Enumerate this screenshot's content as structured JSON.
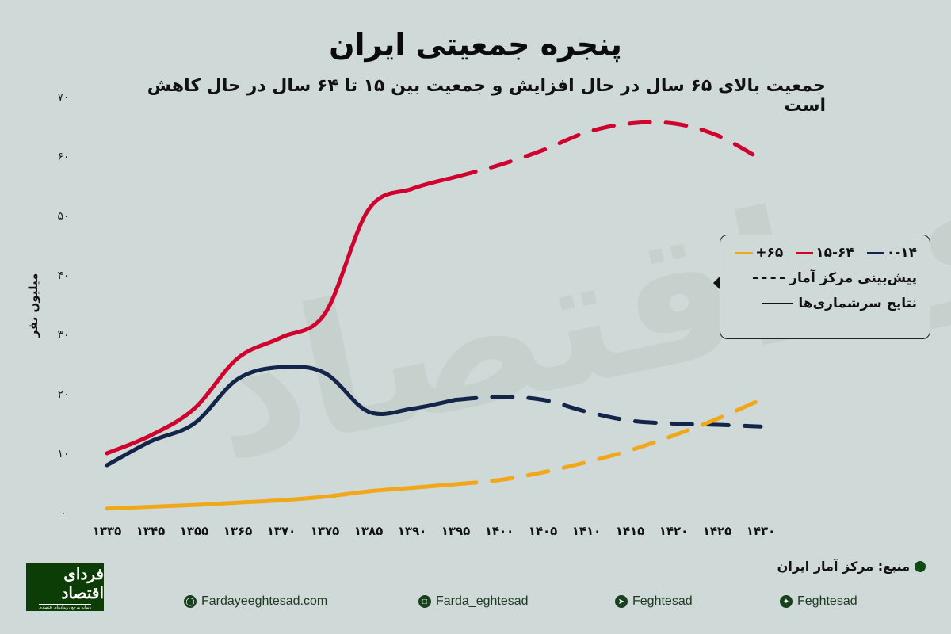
{
  "header": {
    "title": "پنجره جمعیتی ایران",
    "subtitle": "جمعیت بالای ۶۵ سال در حال افزایش و جمعیت بین ۱۵ تا ۶۴ سال در حال کاهش است"
  },
  "watermark": "فردای اقتصاد",
  "legend": {
    "series": [
      {
        "label": "۰-۱۴",
        "color": "#13264A"
      },
      {
        "label": "۱۵-۶۴",
        "color": "#D0022E"
      },
      {
        "label": "۶۵+",
        "color": "#F0A81A"
      }
    ],
    "dashed_label": "پیش‌بینی مرکز آمار",
    "solid_label": "نتایج سرشماری‌ها"
  },
  "source": "منبع: مرکز آمار ایران",
  "logo": {
    "main": "فردای اقتصاد",
    "sub": "رسانه مرجع رویدادهای اقتصادی"
  },
  "footer": {
    "website": "Fardayeeghtesad.com",
    "instagram": "Farda_eghtesad",
    "telegram": "Feghtesad",
    "twitter": "Feghtesad"
  },
  "colors": {
    "background": "#CFD9D8",
    "age_0_14": "#13264A",
    "age_15_64": "#D0022E",
    "age_65_plus": "#F0A81A",
    "brand_green": "#0D3D06"
  },
  "chart_data": {
    "type": "line",
    "title": "پنجره جمعیتی ایران",
    "subtitle": "جمعیت بالای ۶۵ سال در حال افزایش و جمعیت بین ۱۵ تا ۶۴ سال در حال کاهش است",
    "xlabel": "",
    "ylabel": "میلیون نفر",
    "ylim": [
      0,
      70
    ],
    "yticks": [
      "۰",
      "۱۰",
      "۲۰",
      "۳۰",
      "۴۰",
      "۵۰",
      "۶۰",
      "۷۰"
    ],
    "categories": [
      "۱۳۳۵",
      "۱۳۴۵",
      "۱۳۵۵",
      "۱۳۶۵",
      "۱۳۷۰",
      "۱۳۷۵",
      "۱۳۸۵",
      "۱۳۹۰",
      "۱۳۹۵",
      "۱۴۰۰",
      "۱۴۰۵",
      "۱۴۱۰",
      "۱۴۱۵",
      "۱۴۲۰",
      "۱۴۲۵",
      "۱۴۳۰"
    ],
    "x": [
      1335,
      1345,
      1355,
      1365,
      1370,
      1375,
      1385,
      1390,
      1395,
      1400,
      1405,
      1410,
      1415,
      1420,
      1425,
      1430
    ],
    "census_until": 1395,
    "projection_from": 1395,
    "grid": false,
    "legend_position": "right",
    "series": [
      {
        "name": "۰-۱۴",
        "color": "#13264A",
        "values": [
          8,
          12,
          15,
          22.5,
          24.5,
          23.5,
          17,
          17.5,
          19,
          19.5,
          19,
          17,
          15.5,
          15,
          14.8,
          14.5
        ]
      },
      {
        "name": "۱۵-۶۴",
        "color": "#D0022E",
        "values": [
          10,
          13,
          17.5,
          26,
          29.5,
          33.5,
          51,
          54.5,
          56.5,
          58.5,
          61,
          64,
          65.5,
          65.5,
          63.5,
          59.5
        ]
      },
      {
        "name": "۶۵+",
        "color": "#F0A81A",
        "values": [
          0.7,
          1,
          1.3,
          1.7,
          2.1,
          2.7,
          3.6,
          4.2,
          4.8,
          5.5,
          6.8,
          8.5,
          10.5,
          13,
          15.8,
          19
        ]
      }
    ]
  }
}
